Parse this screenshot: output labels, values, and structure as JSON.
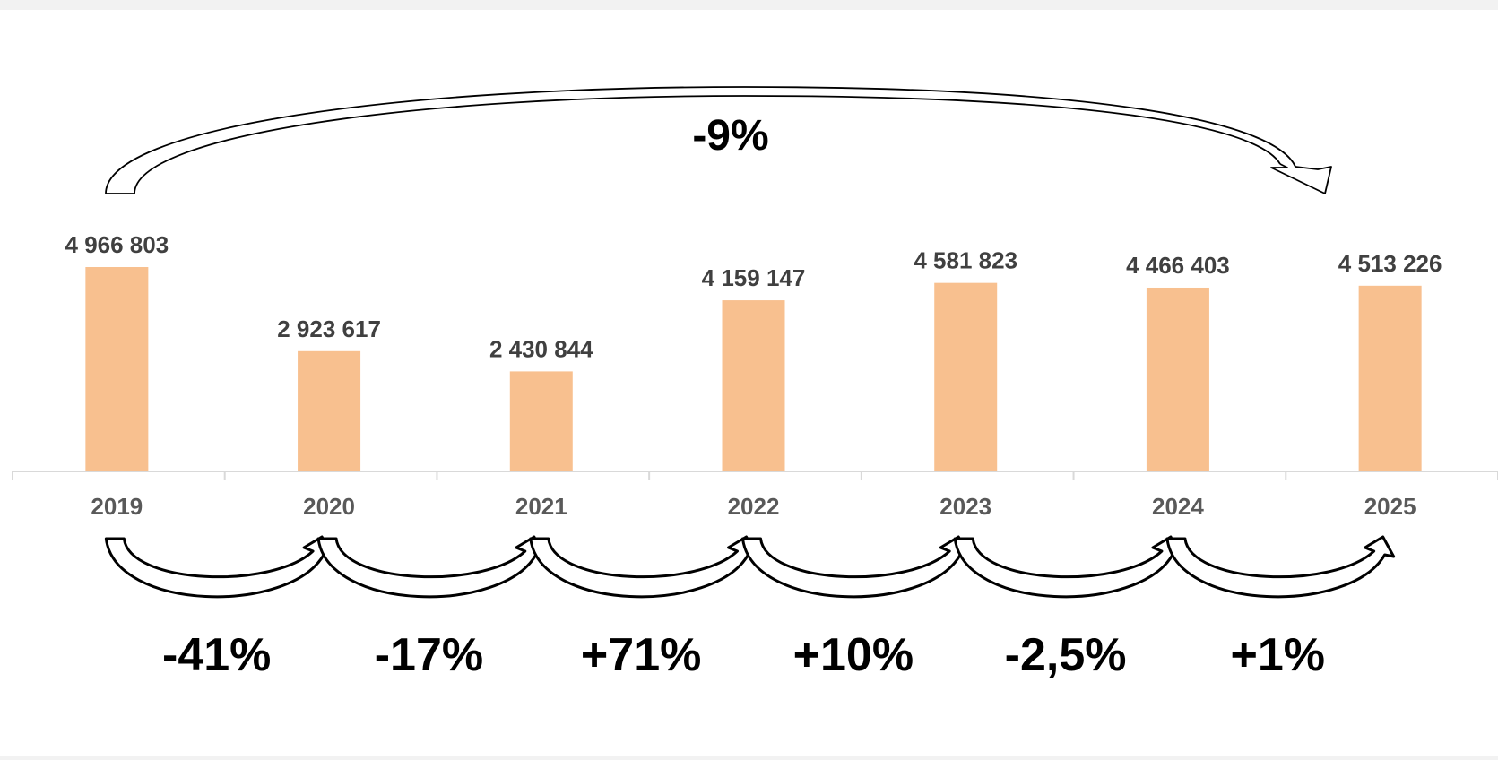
{
  "chart_data": {
    "type": "bar",
    "categories": [
      "2019",
      "2020",
      "2021",
      "2022",
      "2023",
      "2024",
      "2025"
    ],
    "values": [
      4966803,
      2923617,
      2430844,
      4159147,
      4581823,
      4466403,
      4513226
    ],
    "value_labels": [
      "4 966 803",
      "2 923 617",
      "2 430 844",
      "4 159 147",
      "4 581 823",
      "4 466 403",
      "4 513 226"
    ],
    "title": "",
    "xlabel": "",
    "ylabel": "",
    "ylim": [
      0,
      5000000
    ],
    "grid": false,
    "legend": "none",
    "bar_color": "#f8c08f",
    "axis_color": "#d9d9d9",
    "annotations": {
      "overall_change": "-9%",
      "period_changes": [
        "-41%",
        "-17%",
        "+71%",
        "+10%",
        "-2,5%",
        "+1%"
      ]
    }
  }
}
